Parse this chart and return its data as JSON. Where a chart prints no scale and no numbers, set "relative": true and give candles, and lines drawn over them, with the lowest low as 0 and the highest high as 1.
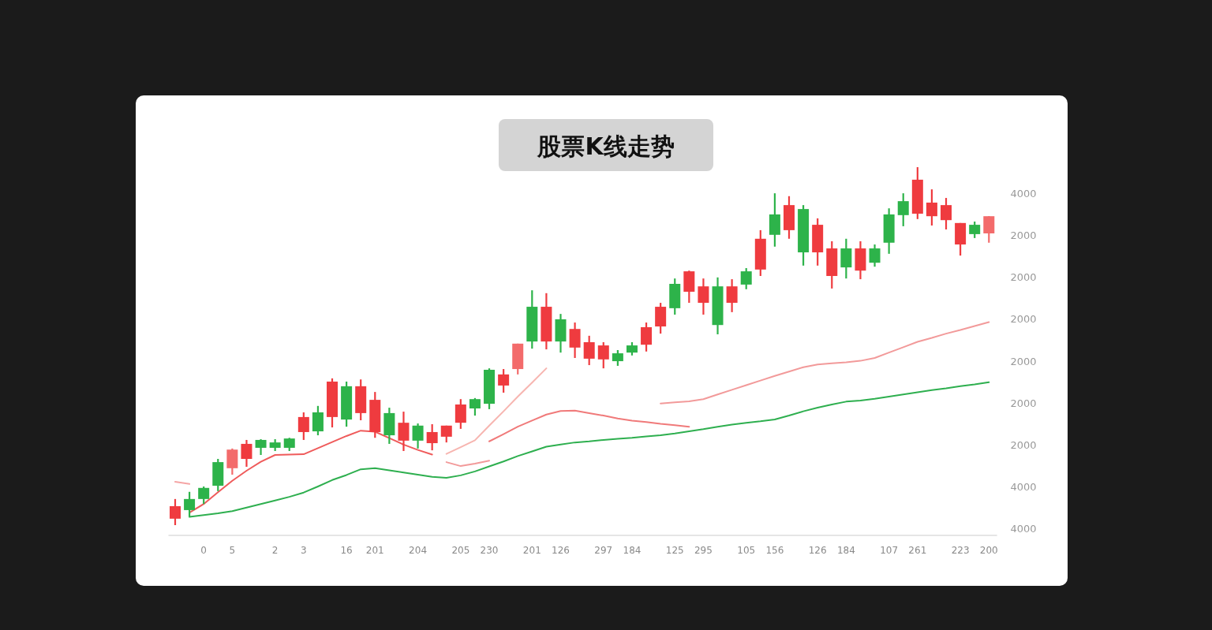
{
  "chart_data": {
    "type": "candlestick",
    "title": "股票K线走势",
    "relative": true,
    "categories": [
      null,
      null,
      "0",
      null,
      "5",
      null,
      null,
      "2",
      null,
      "3",
      null,
      null,
      "16",
      null,
      "201",
      null,
      null,
      "204",
      null,
      null,
      "205",
      null,
      "230",
      null,
      null,
      "201",
      null,
      "126",
      null,
      null,
      "297",
      null,
      "184",
      null,
      null,
      "125",
      null,
      "295",
      null,
      null,
      "105",
      null,
      "156",
      null,
      null,
      "126",
      null,
      "184",
      null,
      null,
      "107",
      null,
      "261",
      null,
      null,
      "223",
      null,
      "200"
    ],
    "ohlc": [
      [
        0.018,
        0.073,
        0,
        0.053
      ],
      [
        0.073,
        0.093,
        0.024,
        0.042
      ],
      [
        0.104,
        0.108,
        0.059,
        0.073
      ],
      [
        0.176,
        0.185,
        0.095,
        0.11
      ],
      [
        0.159,
        0.214,
        0.141,
        0.211
      ],
      [
        0.185,
        0.238,
        0.163,
        0.227
      ],
      [
        0.238,
        0.24,
        0.196,
        0.216
      ],
      [
        0.231,
        0.24,
        0.207,
        0.216
      ],
      [
        0.242,
        0.244,
        0.207,
        0.216
      ],
      [
        0.26,
        0.315,
        0.238,
        0.302
      ],
      [
        0.315,
        0.333,
        0.251,
        0.262
      ],
      [
        0.302,
        0.41,
        0.273,
        0.401
      ],
      [
        0.388,
        0.401,
        0.275,
        0.295
      ],
      [
        0.313,
        0.407,
        0.293,
        0.388
      ],
      [
        0.26,
        0.372,
        0.244,
        0.35
      ],
      [
        0.313,
        0.328,
        0.227,
        0.251
      ],
      [
        0.236,
        0.317,
        0.207,
        0.286
      ],
      [
        0.278,
        0.284,
        0.214,
        0.236
      ],
      [
        0.229,
        0.282,
        0.209,
        0.26
      ],
      [
        0.247,
        0.278,
        0.231,
        0.278
      ],
      [
        0.286,
        0.352,
        0.269,
        0.337
      ],
      [
        0.352,
        0.355,
        0.306,
        0.326
      ],
      [
        0.434,
        0.438,
        0.324,
        0.339
      ],
      [
        0.39,
        0.436,
        0.37,
        0.421
      ],
      [
        0.436,
        0.507,
        0.421,
        0.507
      ],
      [
        0.61,
        0.656,
        0.493,
        0.513
      ],
      [
        0.513,
        0.648,
        0.491,
        0.61
      ],
      [
        0.575,
        0.59,
        0.482,
        0.513
      ],
      [
        0.496,
        0.566,
        0.467,
        0.548
      ],
      [
        0.465,
        0.529,
        0.447,
        0.511
      ],
      [
        0.463,
        0.511,
        0.438,
        0.502
      ],
      [
        0.48,
        0.489,
        0.445,
        0.458
      ],
      [
        0.502,
        0.511,
        0.474,
        0.482
      ],
      [
        0.504,
        0.566,
        0.485,
        0.553
      ],
      [
        0.555,
        0.621,
        0.535,
        0.61
      ],
      [
        0.674,
        0.689,
        0.588,
        0.606
      ],
      [
        0.652,
        0.711,
        0.621,
        0.709
      ],
      [
        0.621,
        0.689,
        0.588,
        0.667
      ],
      [
        0.667,
        0.692,
        0.533,
        0.559
      ],
      [
        0.621,
        0.687,
        0.595,
        0.667
      ],
      [
        0.709,
        0.718,
        0.659,
        0.672
      ],
      [
        0.714,
        0.824,
        0.696,
        0.8
      ],
      [
        0.868,
        0.927,
        0.778,
        0.811
      ],
      [
        0.824,
        0.919,
        0.8,
        0.894
      ],
      [
        0.883,
        0.894,
        0.725,
        0.762
      ],
      [
        0.762,
        0.857,
        0.725,
        0.839
      ],
      [
        0.696,
        0.793,
        0.661,
        0.773
      ],
      [
        0.773,
        0.8,
        0.689,
        0.72
      ],
      [
        0.711,
        0.793,
        0.687,
        0.773
      ],
      [
        0.773,
        0.784,
        0.722,
        0.733
      ],
      [
        0.868,
        0.885,
        0.758,
        0.789
      ],
      [
        0.905,
        0.927,
        0.835,
        0.866
      ],
      [
        0.87,
        1,
        0.855,
        0.965
      ],
      [
        0.863,
        0.938,
        0.837,
        0.901
      ],
      [
        0.852,
        0.914,
        0.826,
        0.894
      ],
      [
        0.784,
        0.844,
        0.753,
        0.844
      ],
      [
        0.839,
        0.848,
        0.802,
        0.813
      ],
      [
        0.815,
        0.863,
        0.789,
        0.863
      ]
    ],
    "colors": [
      "#ef3b3f",
      "#2db34a",
      "#2db34a",
      "#2db34a",
      "#f36b6b",
      "#ef3b3f",
      "#2db34a",
      "#2db34a",
      "#2db34a",
      "#ef3b3f",
      "#2db34a",
      "#ef3b3f",
      "#2db34a",
      "#ef3b3f",
      "#ef3b3f",
      "#2db34a",
      "#ef3b3f",
      "#2db34a",
      "#ef3b3f",
      "#ef3b3f",
      "#ef3b3f",
      "#2db34a",
      "#2db34a",
      "#ef3b3f",
      "#f36b6b",
      "#2db34a",
      "#ef3b3f",
      "#2db34a",
      "#ef3b3f",
      "#ef3b3f",
      "#ef3b3f",
      "#2db34a",
      "#2db34a",
      "#ef3b3f",
      "#ef3b3f",
      "#2db34a",
      "#ef3b3f",
      "#ef3b3f",
      "#2db34a",
      "#ef3b3f",
      "#2db34a",
      "#ef3b3f",
      "#2db34a",
      "#ef3b3f",
      "#2db34a",
      "#ef3b3f",
      "#ef3b3f",
      "#2db34a",
      "#ef3b3f",
      "#2db34a",
      "#2db34a",
      "#2db34a",
      "#ef3b3f",
      "#ef3b3f",
      "#ef3b3f",
      "#ef3b3f",
      "#2db34a",
      "#f36b6b"
    ],
    "series": [
      {
        "type": "line",
        "color": "#2eaf4f",
        "values": [
          null,
          0.023,
          0.028,
          0.033,
          0.039,
          0.049,
          0.059,
          0.069,
          0.079,
          0.091,
          0.108,
          0.126,
          0.14,
          0.156,
          0.159,
          0.153,
          0.147,
          0.141,
          0.135,
          0.132,
          0.139,
          0.15,
          0.164,
          0.178,
          0.193,
          0.206,
          0.219,
          0.225,
          0.231,
          0.234,
          0.238,
          0.241,
          0.244,
          0.248,
          0.251,
          0.256,
          0.262,
          0.268,
          0.275,
          0.281,
          0.286,
          0.29,
          0.295,
          0.306,
          0.318,
          0.328,
          0.337,
          0.345,
          0.348,
          0.353,
          0.359,
          0.365,
          0.371,
          0.377,
          0.382,
          0.388,
          0.393,
          0.399
        ]
      },
      {
        "type": "line",
        "color": "#ef5b5b",
        "values": [
          null,
          0.035,
          0.059,
          0.092,
          0.124,
          0.152,
          0.177,
          0.196,
          0.197,
          0.198,
          0.215,
          0.232,
          0.249,
          0.264,
          0.261,
          0.243,
          0.225,
          0.21,
          0.197,
          null,
          null,
          null,
          null,
          null,
          null,
          null,
          null,
          null,
          null,
          null,
          null,
          null,
          null,
          null,
          null,
          null,
          null,
          null,
          null,
          null,
          null,
          null,
          null,
          null,
          null,
          null,
          null,
          null,
          null,
          null,
          null,
          null,
          null,
          null,
          null,
          null,
          null,
          null
        ]
      },
      {
        "type": "line",
        "color": "#f5a5a5",
        "values": [
          0.121,
          0.115,
          null,
          null,
          null,
          null,
          null,
          null,
          null,
          null,
          null,
          null,
          null,
          null,
          null,
          null,
          null,
          null,
          null,
          null,
          null,
          null,
          null,
          null,
          null,
          null,
          null,
          null,
          null,
          null,
          null,
          null,
          null,
          null,
          null,
          null,
          null,
          null,
          null,
          null,
          null,
          null,
          null,
          null,
          null,
          null,
          null,
          null,
          null,
          null,
          null,
          null,
          null,
          null,
          null,
          null,
          null,
          null
        ]
      },
      {
        "type": "line",
        "color": "#f7b5b0",
        "values": [
          null,
          null,
          null,
          null,
          null,
          null,
          null,
          null,
          null,
          null,
          null,
          null,
          null,
          null,
          null,
          null,
          null,
          null,
          null,
          0.199,
          0.218,
          0.237,
          0.278,
          0.318,
          0.359,
          0.398,
          0.438,
          null,
          null,
          null,
          null,
          null,
          null,
          null,
          null,
          null,
          null,
          null,
          null,
          null,
          null,
          null,
          null,
          null,
          null,
          null,
          null,
          null,
          null,
          null,
          null,
          null,
          null,
          null,
          null,
          null,
          null,
          null
        ]
      },
      {
        "type": "line",
        "color": "#f29a9a",
        "values": [
          null,
          null,
          null,
          null,
          null,
          null,
          null,
          null,
          null,
          null,
          null,
          null,
          null,
          null,
          null,
          null,
          null,
          null,
          null,
          0.176,
          0.165,
          0.172,
          0.18,
          null,
          null,
          null,
          null,
          null,
          null,
          null,
          null,
          null,
          null,
          null,
          null,
          null,
          null,
          null,
          null,
          null,
          null,
          null,
          null,
          null,
          null,
          null,
          null,
          null,
          null,
          null,
          null,
          null,
          null,
          null,
          null,
          null,
          null,
          null
        ]
      },
      {
        "type": "line",
        "color": "#f07a7a",
        "values": [
          null,
          null,
          null,
          null,
          null,
          null,
          null,
          null,
          null,
          null,
          null,
          null,
          null,
          null,
          null,
          null,
          null,
          null,
          null,
          null,
          null,
          null,
          0.234,
          0.254,
          0.275,
          0.292,
          0.309,
          0.319,
          0.32,
          0.313,
          0.306,
          0.298,
          0.292,
          0.288,
          0.283,
          0.279,
          0.275,
          null,
          null,
          null,
          null,
          null,
          null,
          null,
          null,
          null,
          null,
          null,
          null,
          null,
          null,
          null,
          null,
          null,
          null,
          null,
          null,
          null
        ]
      },
      {
        "type": "line",
        "color": "#f29a9a",
        "values": [
          null,
          null,
          null,
          null,
          null,
          null,
          null,
          null,
          null,
          null,
          null,
          null,
          null,
          null,
          null,
          null,
          null,
          null,
          null,
          null,
          null,
          null,
          null,
          null,
          null,
          null,
          null,
          null,
          null,
          null,
          null,
          null,
          null,
          null,
          0.34,
          0.343,
          0.346,
          0.352,
          0.365,
          0.378,
          0.391,
          0.404,
          0.417,
          0.429,
          0.441,
          0.449,
          0.452,
          0.455,
          0.459,
          0.467,
          0.482,
          0.497,
          0.512,
          0.523,
          0.535,
          0.545,
          0.556,
          0.567
        ]
      }
    ],
    "annotations": [
      "4000",
      "2000",
      "2000",
      "2000",
      "2000",
      "2000",
      "2000",
      "4000",
      "4000"
    ]
  }
}
